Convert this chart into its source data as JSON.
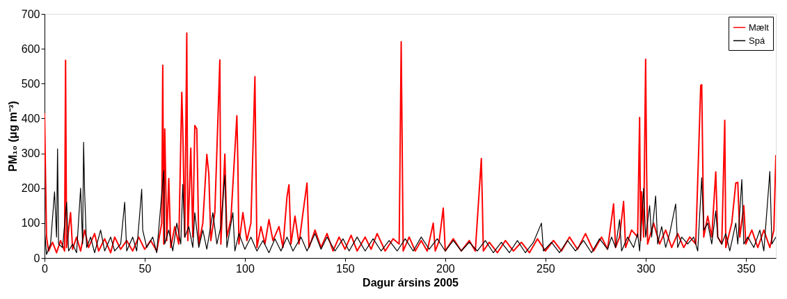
{
  "chart_data": {
    "type": "line",
    "xlabel": "Dagur ársins 2005",
    "ylabel": "PM₁₀ (μg m⁻³)",
    "xlim": [
      0,
      365
    ],
    "xticks": [
      0,
      50,
      100,
      150,
      200,
      250,
      300,
      350
    ],
    "ylim": [
      0,
      700
    ],
    "yticks": [
      0,
      100,
      200,
      300,
      400,
      500,
      600,
      700
    ],
    "grid": false,
    "legend": "top right",
    "line_style": "solid",
    "series": [
      {
        "name": "Mælt",
        "color": "#ff0000",
        "x": [
          0,
          1,
          2,
          4,
          6,
          8,
          10,
          10.5,
          11,
          13,
          14,
          16,
          18,
          20,
          22,
          25,
          27,
          30,
          33,
          35,
          38,
          41,
          44,
          47,
          50,
          53,
          56,
          58.5,
          59,
          59.5,
          60,
          61,
          62,
          63,
          65,
          67,
          68.5,
          69,
          70,
          71,
          71.5,
          73,
          74,
          75,
          76,
          77,
          79,
          81,
          82,
          83,
          85,
          87.5,
          88,
          90,
          91,
          93,
          96,
          96.5,
          97,
          99,
          101,
          103,
          105,
          106,
          108,
          110,
          112,
          114,
          117,
          119,
          121,
          122,
          123,
          125,
          127,
          129,
          131,
          132,
          135,
          138,
          141,
          144,
          147,
          150,
          153,
          156,
          160,
          163,
          166,
          170,
          174,
          177,
          178,
          179,
          182,
          185,
          188,
          191,
          194,
          195,
          197,
          199,
          200,
          204,
          208,
          212,
          215,
          218,
          218.5,
          219,
          222,
          226,
          230,
          234,
          238,
          242,
          246,
          250,
          254,
          258,
          262,
          266,
          270,
          274,
          278,
          281,
          284,
          285,
          287,
          289,
          290,
          293,
          296,
          297,
          297.5,
          298,
          299,
          300,
          300.5,
          301,
          304,
          307,
          310,
          313,
          316,
          319,
          322,
          325,
          327.5,
          328,
          329,
          331,
          333,
          335,
          336,
          338,
          339.5,
          340,
          343,
          345,
          346,
          347,
          349,
          350,
          353,
          356,
          359,
          362,
          364,
          365
        ],
        "values": [
          415,
          60,
          20,
          45,
          15,
          50,
          20,
          567,
          30,
          130,
          25,
          60,
          20,
          80,
          30,
          70,
          20,
          55,
          15,
          60,
          25,
          50,
          20,
          60,
          25,
          50,
          20,
          100,
          553,
          40,
          370,
          50,
          228,
          30,
          90,
          40,
          475,
          370,
          60,
          645,
          50,
          315,
          60,
          380,
          370,
          40,
          100,
          297,
          240,
          50,
          130,
          568,
          40,
          298,
          60,
          110,
          408,
          270,
          40,
          130,
          50,
          100,
          520,
          30,
          90,
          40,
          110,
          50,
          90,
          30,
          175,
          210,
          40,
          120,
          40,
          130,
          215,
          30,
          80,
          30,
          70,
          20,
          60,
          25,
          65,
          20,
          60,
          25,
          70,
          20,
          55,
          40,
          620,
          20,
          60,
          20,
          50,
          20,
          100,
          20,
          50,
          143,
          20,
          55,
          20,
          50,
          20,
          285,
          160,
          20,
          45,
          15,
          50,
          20,
          45,
          15,
          55,
          20,
          50,
          20,
          60,
          25,
          70,
          20,
          60,
          25,
          155,
          30,
          60,
          162,
          30,
          80,
          60,
          403,
          50,
          190,
          60,
          570,
          245,
          40,
          100,
          40,
          80,
          30,
          70,
          30,
          60,
          40,
          495,
          497,
          60,
          120,
          60,
          247,
          60,
          40,
          395,
          30,
          100,
          215,
          217,
          60,
          150,
          40,
          80,
          30,
          80,
          30,
          80,
          295
        ]
      },
      {
        "name": "Spá",
        "color": "#000000",
        "x": [
          0,
          1,
          3,
          5,
          6,
          6.5,
          7,
          9,
          11,
          12,
          14,
          16,
          18,
          19,
          19.5,
          20,
          21,
          23,
          25,
          28,
          30,
          33,
          35,
          38,
          40,
          41,
          44,
          46,
          48.5,
          49,
          51,
          54,
          56,
          59.5,
          60,
          62,
          64,
          66,
          68,
          69,
          70,
          72,
          74,
          75,
          77,
          79,
          81,
          84,
          86,
          88,
          90,
          91,
          94,
          95,
          97,
          100,
          103,
          106,
          109,
          112,
          115,
          118,
          121,
          124,
          128,
          131,
          135,
          138,
          141,
          145,
          149,
          152,
          156,
          160,
          164,
          168,
          172,
          176,
          180,
          184,
          188,
          192,
          196,
          200,
          204,
          208,
          212,
          216,
          220,
          224,
          228,
          232,
          236,
          240,
          244,
          248,
          249,
          253,
          257,
          261,
          265,
          269,
          273,
          277,
          281,
          283,
          285,
          287,
          288,
          291,
          294,
          296,
          297,
          299,
          300,
          302,
          303,
          305,
          306,
          308,
          310,
          312,
          315,
          316,
          318,
          321,
          324,
          326,
          328,
          329,
          331,
          333,
          335,
          336,
          338,
          340,
          342,
          345,
          346,
          348,
          349,
          351,
          354,
          357,
          359,
          362,
          363,
          365
        ],
        "values": [
          80,
          10,
          40,
          190,
          60,
          313,
          40,
          30,
          160,
          20,
          40,
          15,
          200,
          40,
          332,
          190,
          30,
          60,
          15,
          80,
          20,
          60,
          20,
          40,
          160,
          20,
          60,
          20,
          197,
          80,
          30,
          60,
          15,
          251,
          40,
          80,
          20,
          100,
          40,
          211,
          60,
          90,
          30,
          130,
          30,
          80,
          25,
          130,
          40,
          90,
          237,
          30,
          130,
          20,
          70,
          25,
          60,
          20,
          50,
          15,
          55,
          20,
          60,
          20,
          60,
          20,
          70,
          25,
          60,
          20,
          55,
          20,
          60,
          20,
          55,
          20,
          50,
          20,
          55,
          20,
          60,
          25,
          55,
          20,
          50,
          20,
          45,
          20,
          50,
          15,
          45,
          15,
          50,
          15,
          45,
          100,
          20,
          45,
          15,
          50,
          20,
          50,
          15,
          55,
          25,
          60,
          30,
          110,
          20,
          60,
          30,
          70,
          20,
          200,
          60,
          150,
          60,
          178,
          40,
          90,
          30,
          70,
          155,
          30,
          60,
          40,
          60,
          20,
          230,
          80,
          100,
          40,
          135,
          60,
          40,
          70,
          20,
          100,
          40,
          225,
          40,
          60,
          30,
          80,
          20,
          248,
          40,
          60
        ]
      }
    ]
  }
}
